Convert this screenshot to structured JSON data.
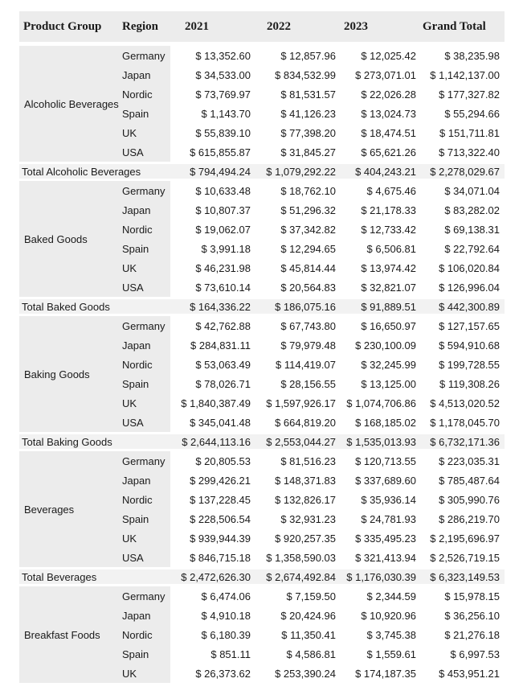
{
  "colors": {
    "band_bg": "#ececec",
    "total_bg": "#f2f2f2",
    "text": "#1a1a1a"
  },
  "table": {
    "columns": [
      "Product Group",
      "Region",
      "2021",
      "2022",
      "2023",
      "Grand Total"
    ],
    "groups": [
      {
        "name": "Alcoholic Beverages",
        "rows": [
          {
            "region": "Germany",
            "values": [
              "$ 13,352.60",
              "$ 12,857.96",
              "$ 12,025.42",
              "$ 38,235.98"
            ]
          },
          {
            "region": "Japan",
            "values": [
              "$ 34,533.00",
              "$ 834,532.99",
              "$ 273,071.01",
              "$ 1,142,137.00"
            ]
          },
          {
            "region": "Nordic",
            "values": [
              "$ 73,769.97",
              "$ 81,531.57",
              "$ 22,026.28",
              "$ 177,327.82"
            ]
          },
          {
            "region": "Spain",
            "values": [
              "$ 1,143.70",
              "$ 41,126.23",
              "$ 13,024.73",
              "$ 55,294.66"
            ]
          },
          {
            "region": "UK",
            "values": [
              "$ 55,839.10",
              "$ 77,398.20",
              "$ 18,474.51",
              "$ 151,711.81"
            ]
          },
          {
            "region": "USA",
            "values": [
              "$ 615,855.87",
              "$ 31,845.27",
              "$ 65,621.26",
              "$ 713,322.40"
            ]
          }
        ],
        "total": {
          "label": "Total Alcoholic Beverages",
          "values": [
            "$ 794,494.24",
            "$ 1,079,292.22",
            "$ 404,243.21",
            "$ 2,278,029.67"
          ]
        }
      },
      {
        "name": "Baked Goods",
        "rows": [
          {
            "region": "Germany",
            "values": [
              "$ 10,633.48",
              "$ 18,762.10",
              "$ 4,675.46",
              "$ 34,071.04"
            ]
          },
          {
            "region": "Japan",
            "values": [
              "$ 10,807.37",
              "$ 51,296.32",
              "$ 21,178.33",
              "$ 83,282.02"
            ]
          },
          {
            "region": "Nordic",
            "values": [
              "$ 19,062.07",
              "$ 37,342.82",
              "$ 12,733.42",
              "$ 69,138.31"
            ]
          },
          {
            "region": "Spain",
            "values": [
              "$ 3,991.18",
              "$ 12,294.65",
              "$ 6,506.81",
              "$ 22,792.64"
            ]
          },
          {
            "region": "UK",
            "values": [
              "$ 46,231.98",
              "$ 45,814.44",
              "$ 13,974.42",
              "$ 106,020.84"
            ]
          },
          {
            "region": "USA",
            "values": [
              "$ 73,610.14",
              "$ 20,564.83",
              "$ 32,821.07",
              "$ 126,996.04"
            ]
          }
        ],
        "total": {
          "label": "Total Baked Goods",
          "values": [
            "$ 164,336.22",
            "$ 186,075.16",
            "$ 91,889.51",
            "$ 442,300.89"
          ]
        }
      },
      {
        "name": "Baking Goods",
        "rows": [
          {
            "region": "Germany",
            "values": [
              "$ 42,762.88",
              "$ 67,743.80",
              "$ 16,650.97",
              "$ 127,157.65"
            ]
          },
          {
            "region": "Japan",
            "values": [
              "$ 284,831.11",
              "$ 79,979.48",
              "$ 230,100.09",
              "$ 594,910.68"
            ]
          },
          {
            "region": "Nordic",
            "values": [
              "$ 53,063.49",
              "$ 114,419.07",
              "$ 32,245.99",
              "$ 199,728.55"
            ]
          },
          {
            "region": "Spain",
            "values": [
              "$ 78,026.71",
              "$ 28,156.55",
              "$ 13,125.00",
              "$ 119,308.26"
            ]
          },
          {
            "region": "UK",
            "values": [
              "$ 1,840,387.49",
              "$ 1,597,926.17",
              "$ 1,074,706.86",
              "$ 4,513,020.52"
            ]
          },
          {
            "region": "USA",
            "values": [
              "$ 345,041.48",
              "$ 664,819.20",
              "$ 168,185.02",
              "$ 1,178,045.70"
            ]
          }
        ],
        "total": {
          "label": "Total Baking Goods",
          "values": [
            "$ 2,644,113.16",
            "$ 2,553,044.27",
            "$ 1,535,013.93",
            "$ 6,732,171.36"
          ]
        }
      },
      {
        "name": "Beverages",
        "rows": [
          {
            "region": "Germany",
            "values": [
              "$ 20,805.53",
              "$ 81,516.23",
              "$ 120,713.55",
              "$ 223,035.31"
            ]
          },
          {
            "region": "Japan",
            "values": [
              "$ 299,426.21",
              "$ 148,371.83",
              "$ 337,689.60",
              "$ 785,487.64"
            ]
          },
          {
            "region": "Nordic",
            "values": [
              "$ 137,228.45",
              "$ 132,826.17",
              "$ 35,936.14",
              "$ 305,990.76"
            ]
          },
          {
            "region": "Spain",
            "values": [
              "$ 228,506.54",
              "$ 32,931.23",
              "$ 24,781.93",
              "$ 286,219.70"
            ]
          },
          {
            "region": "UK",
            "values": [
              "$ 939,944.39",
              "$ 920,257.35",
              "$ 335,495.23",
              "$ 2,195,696.97"
            ]
          },
          {
            "region": "USA",
            "values": [
              "$ 846,715.18",
              "$ 1,358,590.03",
              "$ 321,413.94",
              "$ 2,526,719.15"
            ]
          }
        ],
        "total": {
          "label": "Total Beverages",
          "values": [
            "$ 2,472,626.30",
            "$ 2,674,492.84",
            "$ 1,176,030.39",
            "$ 6,323,149.53"
          ]
        }
      },
      {
        "name": "Breakfast Foods",
        "rows": [
          {
            "region": "Germany",
            "values": [
              "$ 6,474.06",
              "$ 7,159.50",
              "$ 2,344.59",
              "$ 15,978.15"
            ]
          },
          {
            "region": "Japan",
            "values": [
              "$ 4,910.18",
              "$ 20,424.96",
              "$ 10,920.96",
              "$ 36,256.10"
            ]
          },
          {
            "region": "Nordic",
            "values": [
              "$ 6,180.39",
              "$ 11,350.41",
              "$ 3,745.38",
              "$ 21,276.18"
            ]
          },
          {
            "region": "Spain",
            "values": [
              "$ 851.11",
              "$ 4,586.81",
              "$ 1,559.61",
              "$ 6,997.53"
            ]
          },
          {
            "region": "UK",
            "values": [
              "$ 26,373.62",
              "$ 253,390.24",
              "$ 174,187.35",
              "$ 453,951.21"
            ]
          }
        ]
      }
    ]
  }
}
